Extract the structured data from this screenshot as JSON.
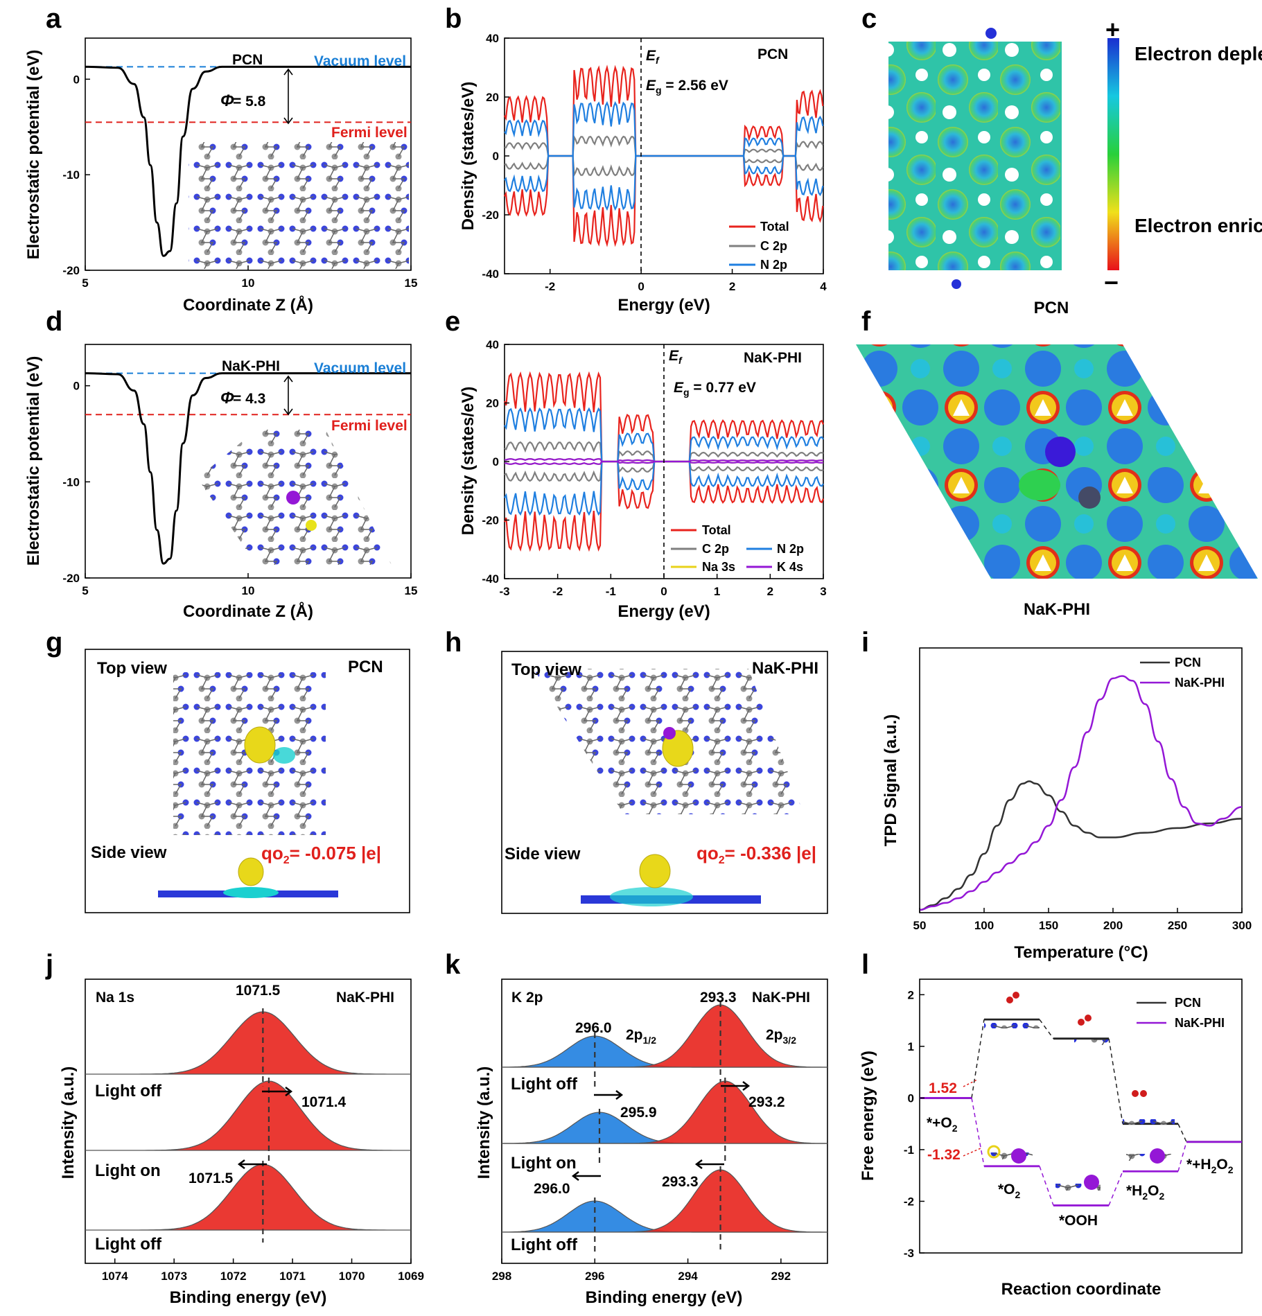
{
  "colors": {
    "red": "#e8231d",
    "blue": "#1f7fe0",
    "gray": "#7f7f7f",
    "yellow": "#e8d21a",
    "purple": "#9417d6",
    "black": "#222222",
    "vacuum": "#1a7fd6",
    "fermi": "#e0201c"
  },
  "panels": {
    "a": "a",
    "b": "b",
    "c": "c",
    "d": "d",
    "e": "e",
    "f": "f",
    "g": "g",
    "h": "h",
    "i": "i",
    "j": "j",
    "k": "k",
    "l": "l"
  },
  "icon_names": [
    "pcn-structure-inset",
    "nak-phi-structure-inset",
    "pcn-charge-density-map",
    "nak-phi-charge-density-map",
    "pcn-o2-adsorption-image",
    "nak-phi-o2-adsorption-image",
    "o2-molecule-icon",
    "ooh-molecule-icon",
    "h2o2-molecule-icon"
  ],
  "chart_data": [
    {
      "panel": "a",
      "type": "line",
      "title": "PCN",
      "xlabel": "Coordinate Z (Å)",
      "ylabel": "Electrostatic potential (eV)",
      "xlim": [
        5,
        15
      ],
      "ylim": [
        -20,
        4.3
      ],
      "xticks": [
        "5",
        "10",
        "15"
      ],
      "yticks": [
        "0",
        "-10",
        "-20"
      ],
      "series": [
        {
          "name": "Electrostatic potential",
          "x": [
            5,
            6,
            6.5,
            6.8,
            7,
            7.2,
            7.4,
            7.6,
            7.8,
            8,
            8.3,
            8.7,
            9.2,
            10,
            15
          ],
          "y": [
            1.3,
            1.2,
            -0.5,
            -4,
            -9,
            -15,
            -18.5,
            -18,
            -13,
            -6,
            -1,
            0.8,
            1.3,
            1.3,
            1.3
          ]
        }
      ],
      "vacuum_level": 1.3,
      "fermi_level": -4.5,
      "labels": {
        "vacuum": "Vacuum level",
        "fermi": "Fermi level",
        "phi_symbol": "Φ",
        "phi_value": " = 5.8"
      }
    },
    {
      "panel": "b",
      "type": "line",
      "title": "PCN",
      "xlabel": "Energy (eV)",
      "ylabel": "Density (states/eV)",
      "xlim": [
        -3,
        4
      ],
      "ylim": [
        -40,
        40
      ],
      "xticks": [
        "-2",
        "0",
        "2",
        "4"
      ],
      "yticks": [
        "40",
        "20",
        "0",
        "-20",
        "-40"
      ],
      "ef_label": "E",
      "ef_sub": "f",
      "eg_label": "E",
      "eg_sub": "g",
      "eg_value": " = 2.56 eV",
      "legend": [
        "Total",
        "C 2p",
        "N 2p"
      ]
    },
    {
      "panel": "c",
      "type": "heatmap",
      "title": "PCN",
      "colorbar": {
        "top": "Electron depletion",
        "bottom": "Electron enrichment",
        "plus": "+",
        "minus": "−"
      }
    },
    {
      "panel": "d",
      "type": "line",
      "title": "NaK-PHI",
      "xlabel": "Coordinate Z (Å)",
      "ylabel": "Electrostatic potential (eV)",
      "xlim": [
        5,
        15
      ],
      "ylim": [
        -20,
        4.3
      ],
      "xticks": [
        "5",
        "10",
        "15"
      ],
      "yticks": [
        "0",
        "-10",
        "-20"
      ],
      "series": [
        {
          "name": "Electrostatic potential",
          "x": [
            5,
            6,
            6.5,
            6.8,
            7,
            7.2,
            7.4,
            7.6,
            7.8,
            8,
            8.3,
            8.7,
            9.2,
            10,
            15
          ],
          "y": [
            1.3,
            1.2,
            -0.5,
            -4,
            -9,
            -15,
            -18.5,
            -18,
            -13,
            -6,
            -1,
            0.8,
            1.3,
            1.3,
            1.3
          ]
        }
      ],
      "vacuum_level": 1.3,
      "fermi_level": -3.0,
      "labels": {
        "vacuum": "Vacuum level",
        "fermi": "Fermi level",
        "phi_symbol": "Φ",
        "phi_value": " = 4.3"
      }
    },
    {
      "panel": "e",
      "type": "line",
      "title": "NaK-PHI",
      "xlabel": "Energy (eV)",
      "ylabel": "Density (states/eV)",
      "xlim": [
        -3,
        3
      ],
      "ylim": [
        -40,
        40
      ],
      "xticks": [
        "-3",
        "-2",
        "-1",
        "0",
        "1",
        "2",
        "3"
      ],
      "yticks": [
        "40",
        "20",
        "0",
        "-20",
        "-40"
      ],
      "ef_label": "E",
      "ef_sub": "f",
      "eg_label": "E",
      "eg_sub": "g",
      "eg_value": " = 0.77 eV",
      "legend": [
        "Total",
        "N 2p",
        "C 2p",
        "Na 3s",
        "K 4s"
      ]
    },
    {
      "panel": "f",
      "type": "heatmap",
      "title": "NaK-PHI"
    },
    {
      "panel": "g",
      "type": "other",
      "title": "PCN",
      "top": "Top view",
      "side": "Side view",
      "charge": "qo",
      "charge_sub": "2",
      "charge_value": "= -0.075 |e|"
    },
    {
      "panel": "h",
      "type": "other",
      "title": "NaK-PHI",
      "top": "Top view",
      "side": "Side view",
      "charge": "qo",
      "charge_sub": "2",
      "charge_value": "= -0.336 |e|"
    },
    {
      "panel": "i",
      "type": "line",
      "xlabel": "Temperature (°C)",
      "ylabel": "TPD Signal (a.u.)",
      "xlim": [
        50,
        300
      ],
      "xticks": [
        "50",
        "100",
        "150",
        "200",
        "250",
        "300"
      ],
      "series": [
        {
          "name": "PCN",
          "x": [
            50,
            60,
            70,
            80,
            90,
            100,
            110,
            120,
            130,
            135,
            140,
            150,
            160,
            170,
            180,
            190,
            200,
            225,
            250,
            275,
            300
          ],
          "y": [
            0,
            0.02,
            0.05,
            0.09,
            0.15,
            0.24,
            0.36,
            0.47,
            0.54,
            0.55,
            0.54,
            0.49,
            0.42,
            0.36,
            0.33,
            0.31,
            0.31,
            0.33,
            0.35,
            0.37,
            0.39
          ]
        },
        {
          "name": "NaK-PHI",
          "x": [
            50,
            60,
            70,
            80,
            90,
            100,
            110,
            120,
            130,
            140,
            150,
            160,
            170,
            180,
            190,
            200,
            207,
            215,
            225,
            235,
            245,
            255,
            265,
            275,
            285,
            300
          ],
          "y": [
            0,
            0.015,
            0.03,
            0.05,
            0.08,
            0.12,
            0.16,
            0.2,
            0.24,
            0.29,
            0.36,
            0.47,
            0.61,
            0.76,
            0.9,
            0.99,
            1.0,
            0.98,
            0.88,
            0.72,
            0.56,
            0.44,
            0.37,
            0.36,
            0.39,
            0.44
          ]
        }
      ]
    },
    {
      "panel": "j",
      "type": "area",
      "xlabel": "Binding energy (eV)",
      "ylabel": "Intensity (a.u.)",
      "xlim": [
        1074.5,
        1069
      ],
      "xticks": [
        "1074",
        "1073",
        "1072",
        "1071",
        "1070",
        "1069"
      ],
      "element": "Na 1s",
      "sample": "NaK-PHI",
      "peaks": [
        {
          "state": "Light off",
          "center": 1071.5,
          "label": "1071.5"
        },
        {
          "state": "Light on",
          "center": 1071.4,
          "label": "1071.4"
        },
        {
          "state": "Light off",
          "center": 1071.5,
          "label": "1071.5"
        }
      ]
    },
    {
      "panel": "k",
      "type": "area",
      "xlabel": "Binding energy (eV)",
      "ylabel": "Intensity (a.u.)",
      "xlim": [
        298,
        291
      ],
      "xticks": [
        "298",
        "296",
        "294",
        "292"
      ],
      "element": "K 2p",
      "sample": "NaK-PHI",
      "p12": "2p",
      "p12sub": "1/2",
      "p32": "2p",
      "p32sub": "3/2",
      "spectra": [
        {
          "state": "Light off",
          "p12": "296.0",
          "p32": "293.3",
          "c12": 296.0,
          "c32": 293.3
        },
        {
          "state": "Light on",
          "p12": "295.9",
          "p32": "293.2",
          "c12": 295.9,
          "c32": 293.2
        },
        {
          "state": "Light off",
          "p12": "296.0",
          "p32": "293.3",
          "c12": 296.0,
          "c32": 293.3
        }
      ]
    },
    {
      "panel": "l",
      "type": "line",
      "xlabel": "Reaction coordinate",
      "ylabel": "Free energy (eV)",
      "ylim": [
        -3,
        2.3
      ],
      "yticks": [
        "2",
        "1",
        "0",
        "-1",
        "-2",
        "-3"
      ],
      "states": [
        "*+O",
        "*O",
        "*OOH",
        "*H",
        "*+H"
      ],
      "state_labels": {
        "o2_start": "*+O",
        "o2_start_sub": "2",
        "o2": "*O",
        "o2_sub": "2",
        "ooh": "*OOH",
        "h2o2": "*H",
        "h2o2_sub1": "2",
        "h2o2_mid": "O",
        "h2o2_sub2": "2",
        "end": "*+H",
        "end_sub1": "2",
        "end_mid": "O",
        "end_sub2": "2"
      },
      "series": [
        {
          "name": "PCN",
          "values": [
            0,
            1.52,
            1.15,
            -0.5,
            -0.85
          ]
        },
        {
          "name": "NaK-PHI",
          "values": [
            0,
            -1.32,
            -2.08,
            -1.42,
            -0.85
          ]
        }
      ],
      "annotations": [
        "1.52",
        "-1.32"
      ]
    }
  ]
}
